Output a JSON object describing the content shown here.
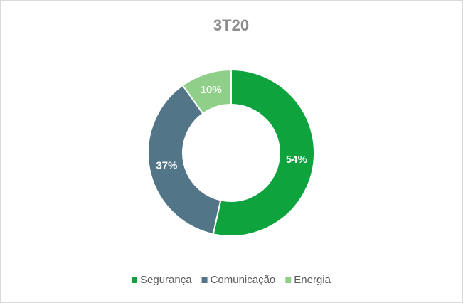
{
  "chart_data": {
    "type": "donut",
    "title": "3T20",
    "categories": [
      "Segurança",
      "Comunicação",
      "Energia"
    ],
    "values": [
      54,
      37,
      10
    ],
    "value_labels": [
      "54%",
      "37%",
      "10%"
    ],
    "colors": [
      "#0ea33c",
      "#527588",
      "#8fcf8a"
    ],
    "legend": "bottom"
  }
}
